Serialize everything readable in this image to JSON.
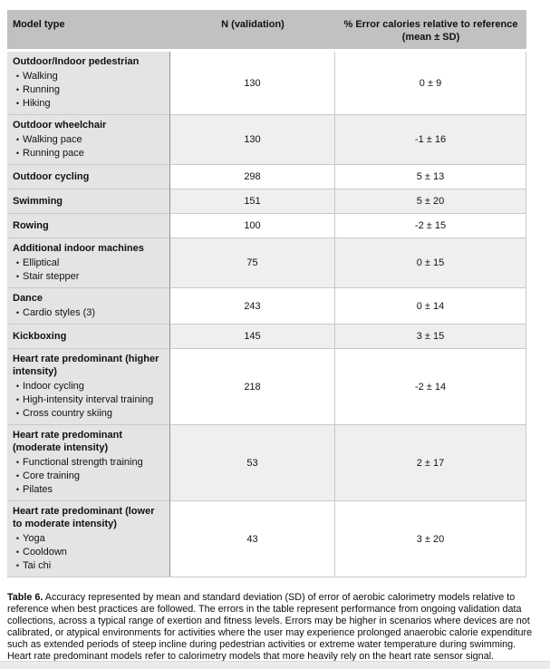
{
  "table": {
    "headers": {
      "model": "Model type",
      "n": "N (validation)",
      "error_line1": "% Error calories relative to reference",
      "error_line2": "(mean ± SD)"
    },
    "rows": [
      {
        "model": "Outdoor/Indoor pedestrian",
        "items": [
          "Walking",
          "Running",
          "Hiking"
        ],
        "n": "130",
        "error": "0 ± 9"
      },
      {
        "model": "Outdoor wheelchair",
        "items": [
          "Walking pace",
          "Running pace"
        ],
        "n": "130",
        "error": "-1 ± 16"
      },
      {
        "model": "Outdoor cycling",
        "items": [],
        "n": "298",
        "error": "5 ± 13"
      },
      {
        "model": "Swimming",
        "items": [],
        "n": "151",
        "error": "5 ± 20"
      },
      {
        "model": "Rowing",
        "items": [],
        "n": "100",
        "error": "-2 ± 15"
      },
      {
        "model": "Additional indoor machines",
        "items": [
          "Elliptical",
          "Stair stepper"
        ],
        "n": "75",
        "error": "0 ± 15"
      },
      {
        "model": "Dance",
        "items": [
          "Cardio styles (3)"
        ],
        "n": "243",
        "error": "0 ± 14"
      },
      {
        "model": "Kickboxing",
        "items": [],
        "n": "145",
        "error": "3 ± 15"
      },
      {
        "model": "Heart rate predominant (higher intensity)",
        "items": [
          "Indoor cycling",
          "High-intensity interval training",
          "Cross country skiing"
        ],
        "n": "218",
        "error": "-2 ± 14"
      },
      {
        "model": "Heart rate predominant (moderate intensity)",
        "items": [
          "Functional strength training",
          "Core training",
          "Pilates"
        ],
        "n": "53",
        "error": "2 ± 17"
      },
      {
        "model": "Heart rate predominant (lower to moderate intensity)",
        "items": [
          "Yoga",
          "Cooldown",
          "Tai chi"
        ],
        "n": "43",
        "error": "3 ± 20"
      }
    ]
  },
  "caption": {
    "label": "Table 6.",
    "text": " Accuracy represented by mean and standard deviation (SD) of error of aerobic calorimetry models relative to reference when best practices are followed. The errors in the table represent performance from ongoing validation data collections, across a typical range of exertion and fitness levels. Errors may be higher in scenarios where devices are not calibrated, or atypical environments for activities where the user may experience prolonged anaerobic calorie expenditure such as extended periods of steep incline during pedestrian activities or extreme water temperature during swimming. Heart rate predominant models refer to calorimetry models that more heavily rely on the heart rate sensor signal."
  },
  "colors": {
    "header_bg": "#c1c1c1",
    "firstcol_bg": "#e4e4e4",
    "shaded_bg": "#efefef",
    "border_dark": "#8f8f8f",
    "border_light": "#c9c9c9",
    "strip_bg": "#ebebeb",
    "text": "#111111"
  }
}
